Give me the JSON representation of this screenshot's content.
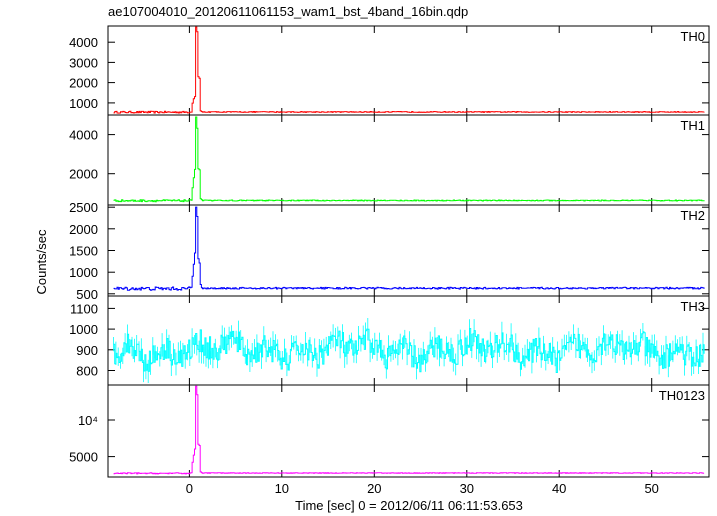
{
  "chart_data": {
    "type": "line",
    "title": "ae107004010_20120611061153_wam1_bst_4band_16bin.qdp",
    "xlabel": "Time [sec] 0 = 2012/06/11 06:11:53.653",
    "ylabel": "Counts/sec",
    "xlim": [
      -8.8,
      56.2
    ],
    "x_ticks": [
      0,
      10,
      20,
      30,
      40,
      50
    ],
    "x_tick_labels": [
      "0",
      "10",
      "20",
      "30",
      "40",
      "50"
    ],
    "grid": false,
    "panels": [
      {
        "name": "TH0",
        "color": "#ff0000",
        "ylim": [
          400,
          4800
        ],
        "y_ticks": [
          1000,
          2000,
          3000,
          4000
        ],
        "y_tick_labels": [
          "1000",
          "2000",
          "3000",
          "4000"
        ],
        "baseline": 540,
        "noise": 45,
        "errbar": 0,
        "x": [
          -8,
          0.1,
          0.2,
          0.3,
          0.4,
          0.5,
          0.6,
          0.7,
          0.8,
          0.9,
          1.0,
          1.1,
          1.2,
          1.3,
          56
        ],
        "y": [
          540,
          560,
          1000,
          1100,
          1200,
          1300,
          4750,
          4500,
          2300,
          2300,
          2200,
          600,
          560,
          550,
          540
        ]
      },
      {
        "name": "TH1",
        "color": "#00ff00",
        "ylim": [
          400,
          5000
        ],
        "y_ticks": [
          2000,
          4000
        ],
        "y_tick_labels": [
          "2000",
          "4000"
        ],
        "baseline": 620,
        "noise": 50,
        "errbar": 0,
        "x": [
          -8,
          0.1,
          0.2,
          0.3,
          0.4,
          0.5,
          0.6,
          0.7,
          0.8,
          0.9,
          1.0,
          1.1,
          1.2,
          1.3,
          56
        ],
        "y": [
          620,
          650,
          1300,
          1500,
          1800,
          2200,
          4900,
          4300,
          2300,
          2250,
          2200,
          700,
          640,
          630,
          620
        ]
      },
      {
        "name": "TH2",
        "color": "#0000ff",
        "ylim": [
          450,
          2550
        ],
        "y_ticks": [
          500,
          1000,
          1500,
          2000,
          2500
        ],
        "y_tick_labels": [
          "500",
          "1000",
          "1500",
          "2000",
          "2500"
        ],
        "baseline": 620,
        "noise": 40,
        "errbar": 0,
        "x": [
          -8,
          0.1,
          0.2,
          0.3,
          0.4,
          0.5,
          0.6,
          0.7,
          0.8,
          0.9,
          1.0,
          1.1,
          1.2,
          1.3,
          56
        ],
        "y": [
          620,
          650,
          900,
          1000,
          1200,
          1450,
          2520,
          2300,
          1350,
          1300,
          1200,
          700,
          640,
          630,
          620
        ]
      },
      {
        "name": "TH3",
        "color": "#00ffff",
        "ylim": [
          730,
          1160
        ],
        "y_ticks": [
          800,
          900,
          1000,
          1100
        ],
        "y_tick_labels": [
          "800",
          "900",
          "1000",
          "1100"
        ],
        "baseline": 900,
        "noise": 60,
        "errbar": 45,
        "x": [],
        "y": []
      },
      {
        "name": "TH0123",
        "color": "#ff00ff",
        "ylim": [
          2200,
          14800
        ],
        "y_ticks": [
          5000,
          10000
        ],
        "y_tick_labels": [
          "5000",
          "10⁴"
        ],
        "baseline": 2700,
        "noise": 80,
        "errbar": 0,
        "x": [
          -8,
          0.1,
          0.2,
          0.3,
          0.4,
          0.5,
          0.6,
          0.7,
          0.8,
          0.9,
          1.0,
          1.1,
          1.2,
          1.3,
          56
        ],
        "y": [
          2700,
          2800,
          4200,
          4500,
          5200,
          6000,
          14600,
          13500,
          6800,
          6700,
          6500,
          2900,
          2800,
          2750,
          2700
        ]
      }
    ]
  }
}
